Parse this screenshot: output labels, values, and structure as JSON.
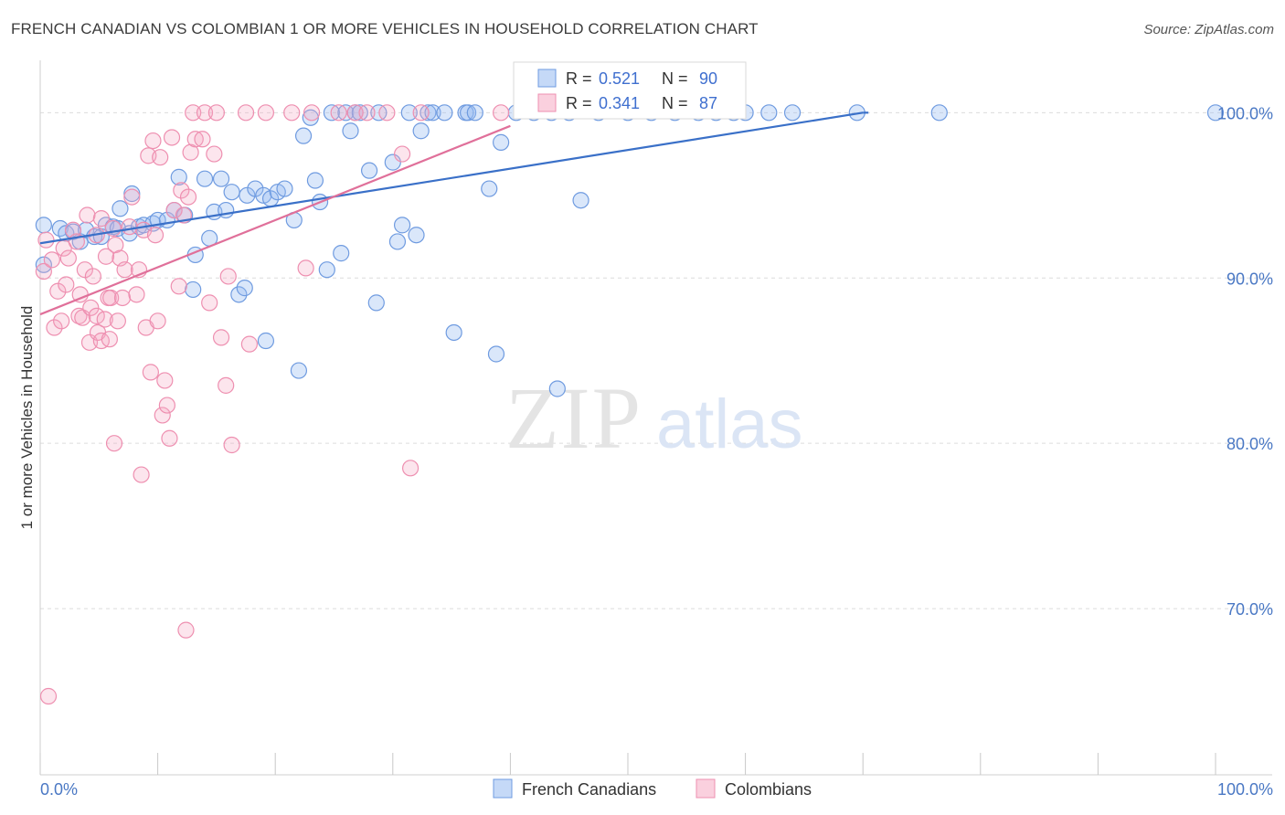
{
  "title": "FRENCH CANADIAN VS COLOMBIAN 1 OR MORE VEHICLES IN HOUSEHOLD CORRELATION CHART",
  "source": "Source: ZipAtlas.com",
  "chart_data": {
    "type": "scatter",
    "title": "FRENCH CANADIAN VS COLOMBIAN 1 OR MORE VEHICLES IN HOUSEHOLD CORRELATION CHART",
    "xlabel": "",
    "ylabel": "1 or more Vehicles in Household",
    "xlim": [
      0,
      100
    ],
    "ylim": [
      60.5,
      103.5
    ],
    "x_tick_labels": [
      "0.0%",
      "100.0%"
    ],
    "y_ticks": [
      70,
      80,
      90,
      100
    ],
    "y_tick_labels": [
      "70.0%",
      "80.0%",
      "90.0%",
      "100.0%"
    ],
    "grid": true,
    "watermark": "ZIPatlas",
    "colors": {
      "french_canadians": "#6f9be0",
      "colombians": "#ee8fb0",
      "blue_line": "#3a70c8",
      "pink_line": "#e0709a"
    },
    "legend_stats": [
      {
        "r_label": "R = ",
        "r_value": "0.521",
        "n_label": "N = ",
        "n_value": "90"
      },
      {
        "r_label": "R = ",
        "r_value": "0.341",
        "n_label": "N = ",
        "n_value": "87"
      }
    ],
    "series": [
      {
        "name": "French Canadians",
        "trend": {
          "x": [
            0,
            70
          ],
          "y": [
            92.1,
            100.0
          ]
        },
        "points": [
          [
            0.3,
            90.8
          ],
          [
            0.3,
            93.2
          ],
          [
            1.7,
            93
          ],
          [
            2.2,
            92.7
          ],
          [
            2.8,
            92.8
          ],
          [
            3.4,
            92.2
          ],
          [
            3.9,
            92.9
          ],
          [
            4.6,
            92.5
          ],
          [
            5.2,
            92.5
          ],
          [
            5.6,
            93.2
          ],
          [
            6.2,
            93.1
          ],
          [
            6.6,
            93
          ],
          [
            6.8,
            94.2
          ],
          [
            7.8,
            95.1
          ],
          [
            7.6,
            92.7
          ],
          [
            8.4,
            93.1
          ],
          [
            8.8,
            93.2
          ],
          [
            9.6,
            93.3
          ],
          [
            10,
            93.5
          ],
          [
            10.8,
            93.5
          ],
          [
            11.4,
            94.1
          ],
          [
            11.8,
            96.1
          ],
          [
            12.3,
            93.8
          ],
          [
            13,
            89.3
          ],
          [
            13.2,
            91.4
          ],
          [
            14,
            96
          ],
          [
            14.4,
            92.4
          ],
          [
            14.8,
            94
          ],
          [
            15.4,
            96
          ],
          [
            15.8,
            94.1
          ],
          [
            16.3,
            95.2
          ],
          [
            16.9,
            89
          ],
          [
            17.4,
            89.4
          ],
          [
            17.6,
            95
          ],
          [
            18.3,
            95.4
          ],
          [
            19,
            95
          ],
          [
            19.2,
            86.2
          ],
          [
            19.6,
            94.8
          ],
          [
            20.2,
            95.2
          ],
          [
            20.8,
            95.4
          ],
          [
            21.6,
            93.5
          ],
          [
            22,
            84.4
          ],
          [
            22.4,
            98.6
          ],
          [
            23,
            99.7
          ],
          [
            23.4,
            95.9
          ],
          [
            23.8,
            94.6
          ],
          [
            24.4,
            90.5
          ],
          [
            24.8,
            100
          ],
          [
            25.6,
            91.5
          ],
          [
            26,
            100
          ],
          [
            26.4,
            98.9
          ],
          [
            26.8,
            100
          ],
          [
            27.2,
            100
          ],
          [
            28,
            96.5
          ],
          [
            28.6,
            88.5
          ],
          [
            28.8,
            100
          ],
          [
            30,
            97
          ],
          [
            30.4,
            92.2
          ],
          [
            30.8,
            93.2
          ],
          [
            31.4,
            100
          ],
          [
            32,
            92.6
          ],
          [
            32.4,
            98.9
          ],
          [
            33,
            100
          ],
          [
            33.4,
            100
          ],
          [
            34.4,
            100
          ],
          [
            35.2,
            86.7
          ],
          [
            36.2,
            100
          ],
          [
            36.4,
            100
          ],
          [
            37,
            100
          ],
          [
            38.2,
            95.4
          ],
          [
            38.8,
            85.4
          ],
          [
            39.2,
            98.2
          ],
          [
            40.5,
            100
          ],
          [
            42,
            100
          ],
          [
            43.5,
            100
          ],
          [
            44,
            83.3
          ],
          [
            45,
            100
          ],
          [
            46,
            94.7
          ],
          [
            47.5,
            100
          ],
          [
            50,
            100
          ],
          [
            52,
            100
          ],
          [
            54,
            100
          ],
          [
            56,
            100
          ],
          [
            57.5,
            100
          ],
          [
            59,
            100
          ],
          [
            60,
            100
          ],
          [
            62,
            100
          ],
          [
            64,
            100
          ],
          [
            69.5,
            100
          ],
          [
            76.5,
            100
          ],
          [
            100,
            100
          ]
        ]
      },
      {
        "name": "Colombians",
        "trend": {
          "x": [
            0,
            40
          ],
          "y": [
            87.8,
            99.2
          ]
        },
        "points": [
          [
            0.3,
            90.4
          ],
          [
            0.5,
            92.3
          ],
          [
            1,
            91.1
          ],
          [
            1.2,
            87
          ],
          [
            1.5,
            89.2
          ],
          [
            1.8,
            87.4
          ],
          [
            2,
            91.8
          ],
          [
            2.2,
            89.6
          ],
          [
            2.4,
            91.2
          ],
          [
            2.8,
            92.9
          ],
          [
            3.1,
            92.2
          ],
          [
            3.3,
            87.7
          ],
          [
            3.4,
            89
          ],
          [
            3.6,
            87.6
          ],
          [
            3.8,
            90.5
          ],
          [
            4,
            93.8
          ],
          [
            4.2,
            86.1
          ],
          [
            4.3,
            88.2
          ],
          [
            4.5,
            90.1
          ],
          [
            4.8,
            87.7
          ],
          [
            4.8,
            92.6
          ],
          [
            4.9,
            86.7
          ],
          [
            5.2,
            86.2
          ],
          [
            5.2,
            93.6
          ],
          [
            5.5,
            87.5
          ],
          [
            5.6,
            91.3
          ],
          [
            5.8,
            88.8
          ],
          [
            5.9,
            86.3
          ],
          [
            6,
            88.8
          ],
          [
            6.2,
            93
          ],
          [
            6.3,
            80
          ],
          [
            6.4,
            92
          ],
          [
            6.6,
            87.4
          ],
          [
            6.8,
            91.2
          ],
          [
            7,
            88.8
          ],
          [
            7.2,
            90.5
          ],
          [
            7.6,
            93.1
          ],
          [
            7.8,
            94.9
          ],
          [
            8.2,
            89
          ],
          [
            8.4,
            90.5
          ],
          [
            8.6,
            78.1
          ],
          [
            8.8,
            92.9
          ],
          [
            9,
            87
          ],
          [
            9.2,
            97.4
          ],
          [
            9.4,
            84.3
          ],
          [
            9.6,
            98.3
          ],
          [
            9.8,
            92.6
          ],
          [
            10,
            87.4
          ],
          [
            10.2,
            97.3
          ],
          [
            10.4,
            81.7
          ],
          [
            10.6,
            83.8
          ],
          [
            10.8,
            82.3
          ],
          [
            11,
            80.3
          ],
          [
            11.2,
            98.5
          ],
          [
            11.4,
            94.1
          ],
          [
            11.8,
            89.5
          ],
          [
            12,
            95.3
          ],
          [
            12.2,
            93.8
          ],
          [
            12.4,
            68.7
          ],
          [
            12.6,
            94.9
          ],
          [
            12.8,
            97.6
          ],
          [
            13,
            100
          ],
          [
            13.2,
            98.4
          ],
          [
            13.8,
            98.4
          ],
          [
            14,
            100
          ],
          [
            14.4,
            88.5
          ],
          [
            14.8,
            97.5
          ],
          [
            15,
            100
          ],
          [
            15.4,
            86.4
          ],
          [
            15.8,
            83.5
          ],
          [
            16,
            90.1
          ],
          [
            16.3,
            79.9
          ],
          [
            17.5,
            100
          ],
          [
            17.8,
            86
          ],
          [
            19.2,
            100
          ],
          [
            21.4,
            100
          ],
          [
            22.6,
            90.6
          ],
          [
            23.1,
            100
          ],
          [
            25.4,
            100
          ],
          [
            26.8,
            100
          ],
          [
            27.8,
            100
          ],
          [
            29.5,
            100
          ],
          [
            30.8,
            97.5
          ],
          [
            31.5,
            78.5
          ],
          [
            32.4,
            100
          ],
          [
            0.7,
            64.7
          ],
          [
            39.2,
            100
          ]
        ]
      }
    ]
  },
  "bottom_legend": [
    {
      "label": "French Canadians"
    },
    {
      "label": "Colombians"
    }
  ]
}
